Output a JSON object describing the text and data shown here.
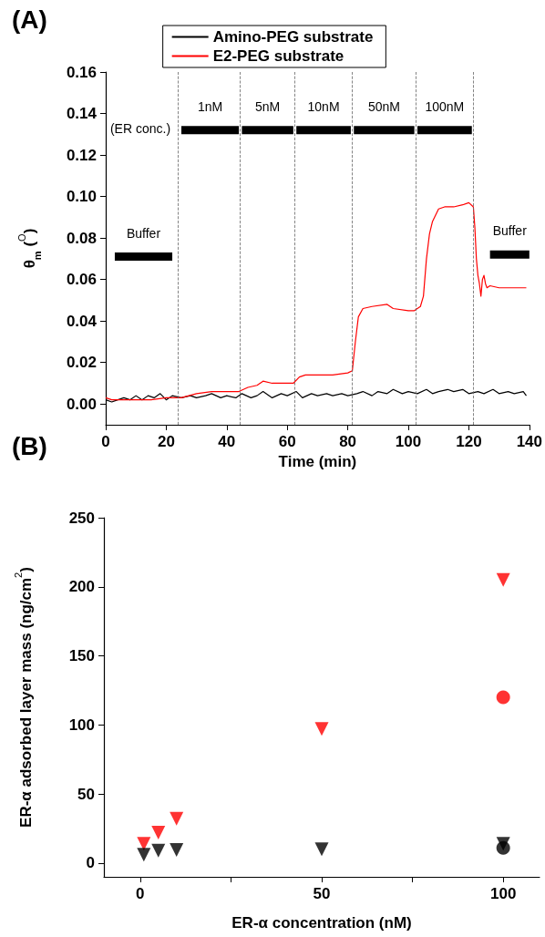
{
  "chart_data": [
    {
      "type": "line",
      "title": "(A)",
      "xlabel": "Time (min)",
      "ylabel": "θ$_{m}$ ($^{O}$)",
      "xlim": [
        0,
        140
      ],
      "xticks": [
        0,
        20,
        40,
        60,
        80,
        100,
        120,
        140
      ],
      "ylim": [
        -0.01,
        0.16
      ],
      "yticks": [
        {
          "value": 0,
          "label": "0.00"
        },
        {
          "value": 0.02,
          "label": "0.02"
        },
        {
          "value": 0.04,
          "label": "0.04"
        },
        {
          "value": 0.06,
          "label": "0.06"
        },
        {
          "value": 0.08,
          "label": "0.08"
        },
        {
          "value": 0.1,
          "label": "0.10"
        },
        {
          "value": 0.12,
          "label": "0.12"
        },
        {
          "value": 0.14,
          "label": "0.14"
        },
        {
          "value": 0.16,
          "label": "0.16"
        }
      ],
      "grid": false,
      "legend": "top",
      "series": [
        {
          "name": "Amino-PEG substrate",
          "color": "#000000",
          "x": [
            0,
            2,
            4,
            6,
            8,
            10,
            12,
            14,
            16,
            18,
            20,
            22,
            25,
            28,
            30,
            33,
            35,
            38,
            40,
            43,
            45,
            48,
            50,
            52,
            55,
            58,
            60,
            63,
            65,
            68,
            70,
            73,
            75,
            78,
            80,
            83,
            85,
            88,
            90,
            93,
            95,
            98,
            100,
            103,
            106,
            108,
            110,
            113,
            115,
            118,
            120,
            123,
            125,
            128,
            130,
            133,
            135,
            138,
            139
          ],
          "values": [
            0.002,
            0.001,
            0.002,
            0.003,
            0.002,
            0.004,
            0.002,
            0.004,
            0.003,
            0.005,
            0.002,
            0.004,
            0.003,
            0.004,
            0.003,
            0.004,
            0.005,
            0.003,
            0.004,
            0.003,
            0.005,
            0.003,
            0.004,
            0.006,
            0.003,
            0.005,
            0.004,
            0.006,
            0.003,
            0.005,
            0.004,
            0.005,
            0.004,
            0.005,
            0.004,
            0.005,
            0.006,
            0.004,
            0.006,
            0.005,
            0.007,
            0.005,
            0.006,
            0.005,
            0.007,
            0.005,
            0.006,
            0.007,
            0.006,
            0.007,
            0.005,
            0.006,
            0.005,
            0.007,
            0.005,
            0.006,
            0.005,
            0.006,
            0.004
          ]
        },
        {
          "name": "E2-PEG substrate",
          "color": "#ff0000",
          "x": [
            0,
            2,
            5,
            10,
            15,
            20,
            25,
            30,
            35,
            40,
            44,
            47,
            50,
            52,
            55,
            60,
            62,
            64,
            66,
            70,
            75,
            80,
            81.5,
            82.5,
            83.5,
            85,
            88,
            93,
            95,
            100,
            102,
            104,
            105,
            106,
            107,
            108,
            110,
            112,
            115,
            118,
            120,
            121.5,
            122,
            122.5,
            123,
            123.5,
            124,
            124.5,
            125,
            125.5,
            126,
            127,
            130,
            135,
            139
          ],
          "values": [
            0.003,
            0.002,
            0.002,
            0.002,
            0.002,
            0.003,
            0.003,
            0.005,
            0.006,
            0.006,
            0.006,
            0.008,
            0.009,
            0.011,
            0.01,
            0.01,
            0.01,
            0.013,
            0.014,
            0.014,
            0.014,
            0.015,
            0.016,
            0.03,
            0.042,
            0.046,
            0.047,
            0.048,
            0.046,
            0.045,
            0.045,
            0.047,
            0.052,
            0.07,
            0.082,
            0.088,
            0.094,
            0.095,
            0.095,
            0.096,
            0.097,
            0.095,
            0.085,
            0.07,
            0.062,
            0.058,
            0.052,
            0.06,
            0.062,
            0.058,
            0.056,
            0.057,
            0.056,
            0.056,
            0.056
          ]
        },
        {
          "name": "Buffer",
          "color": "#000000",
          "x": [
            3,
            22
          ],
          "values": [
            0.071,
            0.071
          ]
        },
        {
          "name": "1nM",
          "color": "#000000",
          "x": [
            25,
            44
          ],
          "values": [
            0.132,
            0.132
          ]
        },
        {
          "name": "5nM",
          "color": "#000000",
          "x": [
            45,
            62
          ],
          "values": [
            0.132,
            0.132
          ]
        },
        {
          "name": "10nM",
          "color": "#000000",
          "x": [
            63,
            81
          ],
          "values": [
            0.132,
            0.132
          ]
        },
        {
          "name": "50nM",
          "color": "#000000",
          "x": [
            82,
            102
          ],
          "values": [
            0.132,
            0.132
          ]
        },
        {
          "name": "100nM",
          "color": "#000000",
          "x": [
            103,
            121
          ],
          "values": [
            0.132,
            0.132
          ]
        },
        {
          "name": "Buffer",
          "color": "#000000",
          "x": [
            127,
            140
          ],
          "values": [
            0.072,
            0.072
          ]
        }
      ],
      "ref_lines": [
        {
          "axis": "x",
          "value": 24,
          "color": "#666666",
          "line_style": "dashed"
        },
        {
          "axis": "x",
          "value": 44.5,
          "color": "#666666",
          "line_style": "dashed"
        },
        {
          "axis": "x",
          "value": 62.5,
          "color": "#666666",
          "line_style": "dashed"
        },
        {
          "axis": "x",
          "value": 81.5,
          "color": "#666666",
          "line_style": "dashed"
        },
        {
          "axis": "x",
          "value": 102.5,
          "color": "#666666",
          "line_style": "dashed"
        },
        {
          "axis": "x",
          "value": 121.5,
          "color": "#666666",
          "line_style": "dashed"
        }
      ],
      "annotations": [
        "(ER conc.)"
      ]
    },
    {
      "type": "scatter",
      "title": "(B)",
      "xlabel": "ER-α concentration (nM)",
      "ylabel": "ER-α adsorbed layer mass (ng/cm$^{2}$)",
      "xlim": [
        -10,
        110
      ],
      "xticks": [
        0,
        {
          "value": 25,
          "label": null
        },
        50,
        {
          "value": 75,
          "label": null
        },
        100
      ],
      "ylim": [
        -10,
        250
      ],
      "yticks": [
        0,
        50,
        100,
        150,
        200,
        250
      ],
      "grid": false,
      "series": [
        {
          "color": "#ff0000",
          "marker": "triangle",
          "x": [
            1,
            5,
            10,
            50,
            100
          ],
          "values": [
            14,
            22,
            32,
            97,
            205
          ]
        },
        {
          "color": "#000000",
          "marker": "triangle",
          "x": [
            1,
            5,
            10,
            50,
            100
          ],
          "values": [
            6,
            9,
            9.5,
            10,
            14
          ]
        },
        {
          "color": "#ff0000",
          "marker": "circle",
          "x": [
            100
          ],
          "values": [
            120
          ]
        },
        {
          "color": "#000000",
          "marker": "circle",
          "x": [
            100
          ],
          "values": [
            11
          ]
        }
      ]
    }
  ]
}
